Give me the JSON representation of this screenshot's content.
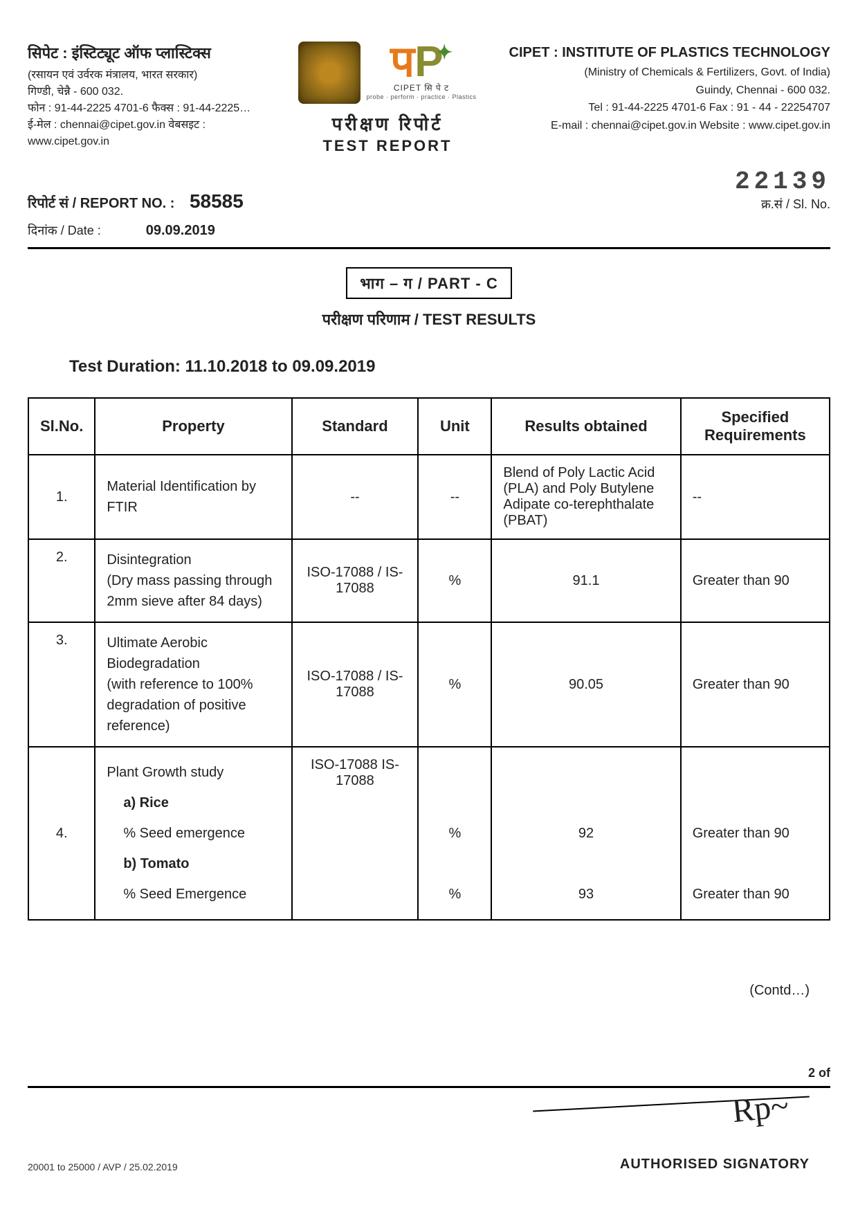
{
  "header": {
    "left": {
      "title_hi": "सिपेट : इंस्टिट्यूट ऑफ प्लास्टिक्स",
      "line2_hi": "(रसायन एवं उर्वरक मंत्रालय, भारत सरकार)",
      "line3_hi": "गिण्डी, चेन्नै - 600 032.",
      "phone_hi": "फोन : 91-44-2225 4701-6  फैक्स : 91-44-2225…",
      "email_hi": "ई-मेल : chennai@cipet.gov.in  वेबसइट : www.cipet.gov.in"
    },
    "center": {
      "cipet_small": "CIPET सि पे ट",
      "tagline": "probe · perform · practice · Plastics",
      "report_hi": "परीक्षण रिपोर्ट",
      "report_en": "TEST REPORT"
    },
    "right": {
      "title_en": "CIPET : INSTITUTE OF PLASTICS TECHNOLOGY",
      "line2": "(Ministry of Chemicals & Fertilizers, Govt. of India)",
      "line3": "Guindy, Chennai - 600 032.",
      "phone": "Tel : 91-44-2225 4701-6  Fax : 91 - 44 - 22254707",
      "email": "E-mail : chennai@cipet.gov.in Website : www.cipet.gov.in"
    }
  },
  "meta": {
    "report_no_label": "रिपोर्ट सं / REPORT NO. :",
    "report_no": "58585",
    "slno_label": "क्र.सं / Sl. No.",
    "slno": "22139",
    "date_label": "दिनांक / Date :",
    "date": "09.09.2019"
  },
  "part": {
    "box": "भाग – ग / PART - C",
    "results_title": "परीक्षण परिणाम / TEST RESULTS",
    "duration_label": "Test Duration: 11.10.2018 to 09.09.2019"
  },
  "columns": {
    "slno": "Sl.No.",
    "property": "Property",
    "standard": "Standard",
    "unit": "Unit",
    "results": "Results obtained",
    "spec": "Specified Requirements"
  },
  "rows": {
    "r1": {
      "no": "1.",
      "prop": "Material Identification by FTIR",
      "std": "--",
      "unit": "--",
      "res": "Blend of Poly Lactic Acid (PLA) and Poly Butylene Adipate co-terephthalate (PBAT)",
      "spec": "--"
    },
    "r2": {
      "no": "2.",
      "prop": "Disintegration\n(Dry mass passing through 2mm sieve after 84 days)",
      "std": "ISO-17088 / IS-17088",
      "unit": "%",
      "res": "91.1",
      "spec": "Greater than 90"
    },
    "r3": {
      "no": "3.",
      "prop": "Ultimate Aerobic Biodegradation\n(with reference to 100% degradation of positive reference)",
      "std": "ISO-17088 / IS-17088",
      "unit": "%",
      "res": "90.05",
      "spec": "Greater than 90"
    },
    "r4": {
      "no": "4.",
      "prop_head": "Plant Growth study",
      "std": "ISO-17088 IS-17088",
      "a_label": "a)  Rice",
      "a_sub": "% Seed emergence",
      "a_unit": "%",
      "a_res": "92",
      "a_spec": "Greater than 90",
      "b_label": "b)  Tomato",
      "b_sub": "% Seed Emergence",
      "b_unit": "%",
      "b_res": "93",
      "b_spec": "Greater than 90"
    }
  },
  "footer": {
    "contd": "(Contd…)",
    "page": "2 of",
    "sig_label": "AUTHORISED SIGNATORY",
    "print_code": "20001 to 25000 / AVP / 25.02.2019"
  },
  "colors": {
    "text": "#222222",
    "orange": "#e67a1a",
    "olive": "#8a8c32",
    "green": "#4a8a2a",
    "rule": "#000000"
  }
}
